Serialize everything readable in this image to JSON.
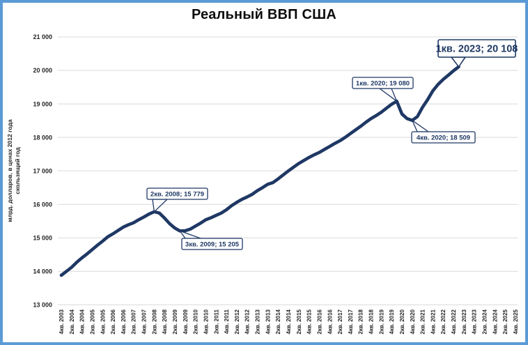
{
  "chart_data": {
    "type": "line",
    "title": "Реальный ВВП США",
    "ylabel_line1": "млрд. долларов, в ценах 2012 года",
    "ylabel_line2": "скользящий год",
    "xlabel": "",
    "ylim": [
      13000,
      21000
    ],
    "ytick_step": 1000,
    "grid": true,
    "legend": "none",
    "ytick_labels": [
      "21 000",
      "20 000",
      "19 000",
      "18 000",
      "17 000",
      "16 000",
      "15 000",
      "14 000",
      "13 000"
    ],
    "xtick_labels": [
      "4кв. 2003",
      "2кв. 2004",
      "4кв. 2004",
      "2кв. 2005",
      "4кв. 2005",
      "2кв. 2006",
      "4кв. 2006",
      "2кв. 2007",
      "4кв. 2007",
      "2кв. 2008",
      "4кв. 2008",
      "2кв. 2009",
      "4кв. 2009",
      "2кв. 2010",
      "4кв. 2010",
      "2кв. 2011",
      "4кв. 2011",
      "2кв. 2012",
      "4кв. 2012",
      "2кв. 2013",
      "4кв. 2013",
      "2кв. 2014",
      "4кв. 2014",
      "2кв. 2015",
      "4кв. 2015",
      "2кв. 2016",
      "4кв. 2016",
      "2кв. 2017",
      "4кв. 2017",
      "2кв. 2018",
      "4кв. 2018",
      "2кв. 2019",
      "4кв. 2019",
      "2кв. 2020",
      "4кв. 2020",
      "2кв. 2021",
      "4кв. 2021",
      "2кв. 2022",
      "4кв. 2022",
      "2кв. 2023",
      "4кв. 2023",
      "2кв. 2024",
      "4кв. 2024",
      "2кв. 2025",
      "4кв. 2025"
    ],
    "series": [
      {
        "name": "Реальный ВВП США",
        "start": "4кв. 2003",
        "frequency": "quarterly",
        "values": [
          13880,
          14000,
          14120,
          14270,
          14400,
          14520,
          14650,
          14780,
          14900,
          15030,
          15120,
          15220,
          15320,
          15390,
          15450,
          15540,
          15620,
          15710,
          15779,
          15740,
          15590,
          15420,
          15290,
          15205,
          15210,
          15260,
          15350,
          15440,
          15540,
          15600,
          15670,
          15740,
          15840,
          15960,
          16060,
          16150,
          16220,
          16300,
          16410,
          16500,
          16600,
          16650,
          16760,
          16880,
          17000,
          17110,
          17220,
          17310,
          17400,
          17480,
          17550,
          17640,
          17730,
          17820,
          17900,
          18000,
          18110,
          18220,
          18330,
          18450,
          18560,
          18650,
          18750,
          18870,
          18990,
          19080,
          18700,
          18560,
          18509,
          18620,
          18900,
          19130,
          19390,
          19580,
          19730,
          19860,
          19990,
          20108
        ]
      }
    ],
    "annotations": [
      {
        "label": "2кв. 2008; 15 779",
        "x": "2кв. 2008",
        "value": 15779
      },
      {
        "label": "3кв. 2009; 15 205",
        "x": "3кв. 2009",
        "value": 15205
      },
      {
        "label": "1кв. 2020; 19 080",
        "x": "1кв. 2020",
        "value": 19080
      },
      {
        "label": "4кв. 2020; 18 509",
        "x": "4кв. 2020",
        "value": 18509
      },
      {
        "label": "1кв. 2023; 20 108",
        "x": "1кв. 2023",
        "value": 20108,
        "emphasized": true
      }
    ],
    "colors": {
      "line": "#1F3864",
      "grid": "#D9D9D9",
      "frame": "#5B9BD5",
      "tick_text": "#262626",
      "callout_text": "#1F3864",
      "callout_border": "#1F3864",
      "callout_bg": "#FFFFFF"
    }
  }
}
